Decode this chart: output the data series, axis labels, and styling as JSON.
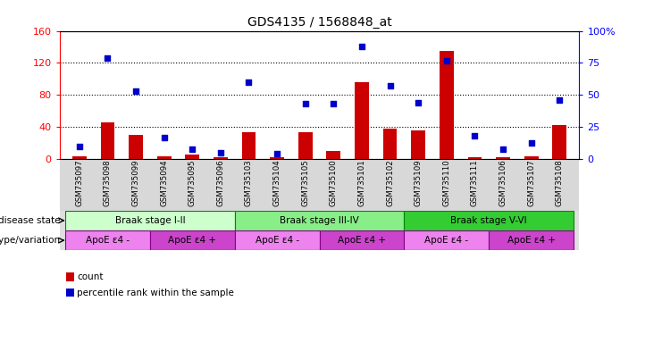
{
  "title": "GDS4135 / 1568848_at",
  "samples": [
    "GSM735097",
    "GSM735098",
    "GSM735099",
    "GSM735094",
    "GSM735095",
    "GSM735096",
    "GSM735103",
    "GSM735104",
    "GSM735105",
    "GSM735100",
    "GSM735101",
    "GSM735102",
    "GSM735109",
    "GSM735110",
    "GSM735111",
    "GSM735106",
    "GSM735107",
    "GSM735108"
  ],
  "counts": [
    3,
    46,
    30,
    4,
    6,
    2,
    34,
    2,
    34,
    10,
    96,
    38,
    36,
    135,
    2,
    2,
    4,
    42
  ],
  "percentiles": [
    10,
    79,
    53,
    17,
    8,
    5,
    60,
    4,
    43,
    43,
    88,
    57,
    44,
    77,
    18,
    8,
    13,
    46
  ],
  "left_ylim": [
    0,
    160
  ],
  "right_ylim": [
    0,
    100
  ],
  "left_yticks": [
    0,
    40,
    80,
    120,
    160
  ],
  "right_yticks": [
    0,
    25,
    50,
    75,
    100
  ],
  "right_yticklabels": [
    "0",
    "25",
    "50",
    "75",
    "100%"
  ],
  "grid_yticks": [
    40,
    80,
    120
  ],
  "disease_state_groups": [
    {
      "label": "Braak stage I-II",
      "start": 0,
      "end": 6,
      "color": "#ccffcc"
    },
    {
      "label": "Braak stage III-IV",
      "start": 6,
      "end": 12,
      "color": "#88ee88"
    },
    {
      "label": "Braak stage V-VI",
      "start": 12,
      "end": 18,
      "color": "#33cc33"
    }
  ],
  "genotype_groups": [
    {
      "label": "ApoE ε4 -",
      "start": 0,
      "end": 3,
      "color": "#ee82ee"
    },
    {
      "label": "ApoE ε4 +",
      "start": 3,
      "end": 6,
      "color": "#cc44cc"
    },
    {
      "label": "ApoE ε4 -",
      "start": 6,
      "end": 9,
      "color": "#ee82ee"
    },
    {
      "label": "ApoE ε4 +",
      "start": 9,
      "end": 12,
      "color": "#cc44cc"
    },
    {
      "label": "ApoE ε4 -",
      "start": 12,
      "end": 15,
      "color": "#ee82ee"
    },
    {
      "label": "ApoE ε4 +",
      "start": 15,
      "end": 18,
      "color": "#cc44cc"
    }
  ],
  "bar_color": "#cc0000",
  "dot_color": "#0000cc",
  "bar_width": 0.5,
  "background_color": "#ffffff",
  "xtick_bg": "#d8d8d8",
  "label_row1": "disease state",
  "label_row2": "genotype/variation",
  "legend_items": [
    "count",
    "percentile rank within the sample"
  ]
}
